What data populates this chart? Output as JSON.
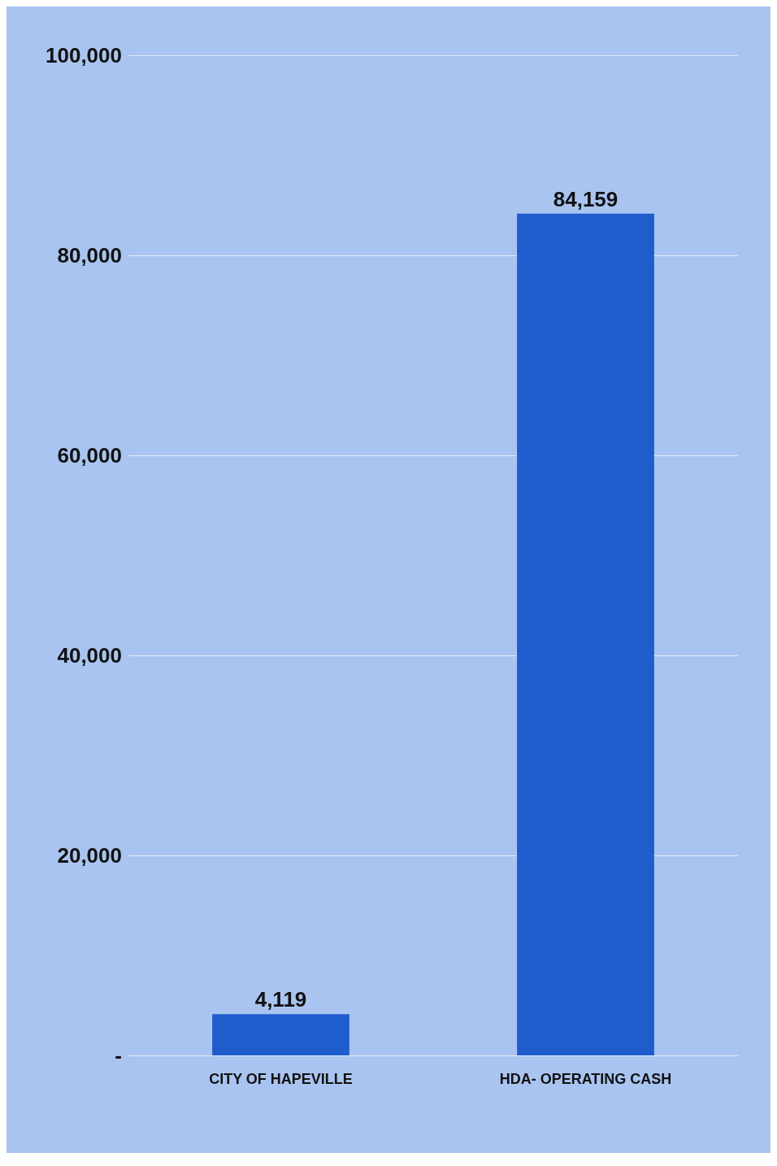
{
  "chart_data": {
    "type": "bar",
    "categories": [
      "CITY OF HAPEVILLE",
      "HDA- OPERATING CASH"
    ],
    "values": [
      4119,
      84159
    ],
    "color": "#1f5ccc",
    "ylim": [
      0,
      100000
    ],
    "yticks": [
      {
        "value": 0,
        "label": "-"
      },
      {
        "value": 20000,
        "label": "20,000"
      },
      {
        "value": 40000,
        "label": "40,000"
      },
      {
        "value": 60000,
        "label": "60,000"
      },
      {
        "value": 80000,
        "label": "80,000"
      },
      {
        "value": 100000,
        "label": "100,000"
      }
    ],
    "grid": true,
    "value_labels": [
      "4,119",
      "84,159"
    ]
  }
}
